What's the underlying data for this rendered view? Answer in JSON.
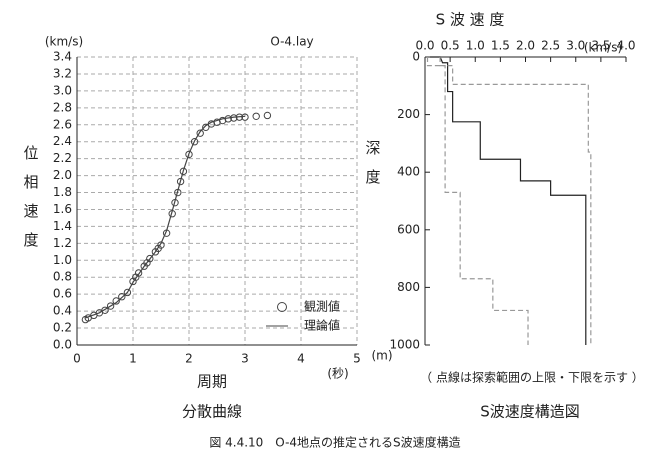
{
  "caption": "図 4.4.10　O-4地点の推定されるS波速度構造",
  "chart_data": [
    {
      "type": "line",
      "title": "分散曲線",
      "annotation": "O-4.lay",
      "y_unit": "(km/s)",
      "y_label": "位相速度",
      "x_label": "周期",
      "x_unit": "(秒)",
      "xlim": [
        0,
        5
      ],
      "xticks": [
        0,
        1,
        2,
        3,
        4,
        5
      ],
      "ylim": [
        0,
        3.4
      ],
      "yticks": [
        {
          "value": 0,
          "label": "0.0"
        },
        0.2,
        0.4,
        0.6,
        0.8,
        {
          "value": 1,
          "label": "1.0"
        },
        1.2,
        1.4,
        1.6,
        1.8,
        {
          "value": 2,
          "label": "2.0"
        },
        2.2,
        2.4,
        2.6,
        2.8,
        {
          "value": 3,
          "label": "3.0"
        },
        3.2,
        3.4
      ],
      "grid": true,
      "legend": "lower right",
      "series": [
        {
          "name": "観測値",
          "color": "#444",
          "marker": "circle",
          "x": [
            0.15,
            0.2,
            0.3,
            0.4,
            0.5,
            0.6,
            0.7,
            0.8,
            0.9,
            1.0,
            1.05,
            1.1,
            1.2,
            1.25,
            1.3,
            1.4,
            1.45,
            1.5,
            1.6,
            1.7,
            1.75,
            1.8,
            1.85,
            1.9,
            2.0,
            2.1,
            2.2,
            2.3,
            2.4,
            2.5,
            2.6,
            2.7,
            2.8,
            2.9,
            3.0,
            3.2,
            3.4
          ],
          "values": [
            0.3,
            0.32,
            0.35,
            0.38,
            0.41,
            0.46,
            0.52,
            0.57,
            0.62,
            0.75,
            0.8,
            0.85,
            0.93,
            0.97,
            1.02,
            1.1,
            1.14,
            1.18,
            1.32,
            1.55,
            1.68,
            1.8,
            1.93,
            2.05,
            2.25,
            2.4,
            2.5,
            2.57,
            2.61,
            2.63,
            2.65,
            2.67,
            2.68,
            2.69,
            2.69,
            2.7,
            2.71
          ]
        },
        {
          "name": "理論値",
          "color": "#444",
          "marker": "line",
          "x": [
            0.15,
            0.4,
            0.7,
            0.9,
            1.0,
            1.2,
            1.4,
            1.5,
            1.6,
            1.7,
            1.8,
            1.9,
            2.0,
            2.1,
            2.2,
            2.3,
            2.4,
            2.6,
            2.8,
            3.0
          ],
          "values": [
            0.32,
            0.38,
            0.5,
            0.62,
            0.74,
            0.93,
            1.1,
            1.2,
            1.35,
            1.58,
            1.82,
            2.06,
            2.26,
            2.41,
            2.52,
            2.59,
            2.63,
            2.67,
            2.69,
            2.7
          ]
        }
      ]
    },
    {
      "type": "line",
      "title": "S波速度構造図",
      "x_label": "S 波 速 度",
      "x_unit": "(km/s)",
      "y_label": "深度",
      "y_unit": "(m)",
      "note": "（ 点線は探索範囲の上限・下限を示す ）",
      "y_inverted": true,
      "x_axis": "top",
      "xlim": [
        0,
        4
      ],
      "xticks": [
        {
          "value": 0,
          "label": "0.0"
        },
        0.5,
        {
          "value": 1,
          "label": "1.0"
        },
        1.5,
        {
          "value": 2,
          "label": "2.0"
        },
        2.5,
        {
          "value": 3,
          "label": "3.0"
        },
        3.5,
        {
          "value": 4,
          "label": "4.0"
        }
      ],
      "ylim": [
        0,
        1000
      ],
      "yticks": [
        0,
        200,
        400,
        600,
        800,
        1000
      ],
      "grid": false,
      "series": [
        {
          "color": "#222",
          "marker": "line",
          "x": [
            0.1,
            0.3,
            0.35,
            0.45,
            0.45,
            0.55,
            0.55,
            1.1,
            1.1,
            1.9,
            1.9,
            2.5,
            2.5,
            3.2,
            3.2
          ],
          "values": [
            0,
            0,
            20,
            20,
            120,
            120,
            225,
            225,
            355,
            355,
            430,
            430,
            480,
            480,
            1000
          ]
        },
        {
          "color": "#999",
          "marker": "line",
          "dash": true,
          "x": [
            0.05,
            0.05,
            0.4,
            0.4,
            0.7,
            0.7,
            1.35,
            1.35,
            2.05,
            2.05
          ],
          "values": [
            0,
            30,
            30,
            470,
            470,
            770,
            770,
            880,
            880,
            1000
          ]
        },
        {
          "color": "#999",
          "marker": "line",
          "dash": true,
          "x": [
            0.3,
            0.3,
            0.55,
            0.55,
            3.25,
            3.25,
            3.3,
            3.3
          ],
          "values": [
            0,
            30,
            30,
            95,
            95,
            330,
            330,
            1000
          ]
        }
      ]
    }
  ]
}
